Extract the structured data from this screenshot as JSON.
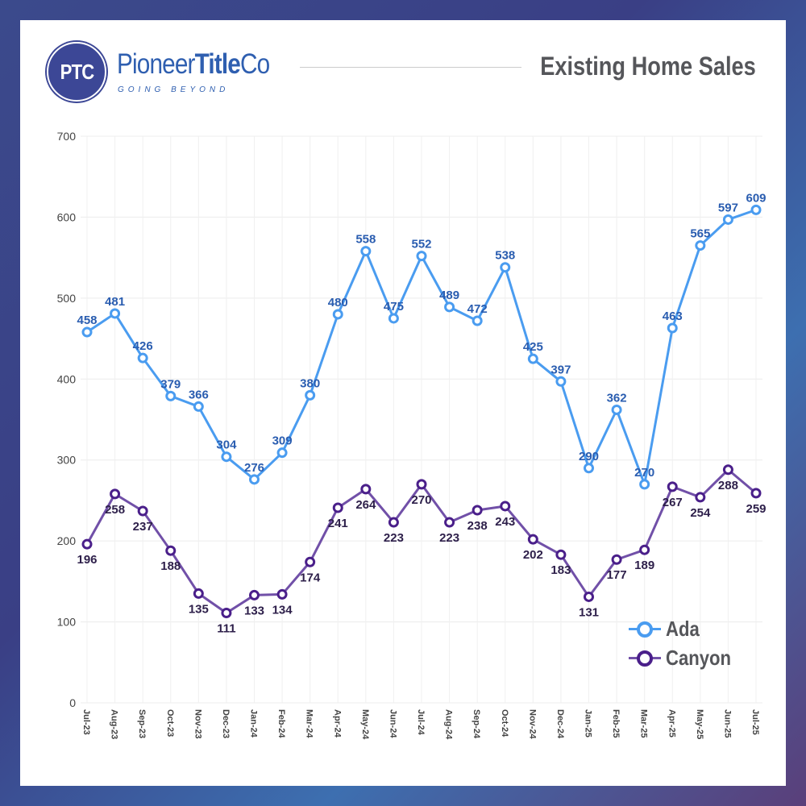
{
  "header": {
    "logo_initials": "PTC",
    "brand_regular": "Pioneer",
    "brand_bold": "Title",
    "brand_suffix": "Co",
    "tagline": "GOING BEYOND",
    "title": "Existing Home Sales"
  },
  "colors": {
    "ada_line": "#4a9cf0",
    "ada_label": "#2a5db0",
    "canyon_line": "#7150a8",
    "canyon_marker": "#4a1f8a",
    "canyon_label": "#2d1f4a"
  },
  "chart_data": {
    "type": "line",
    "title": "Existing Home Sales",
    "xlabel": "",
    "ylabel": "",
    "ylim": [
      0,
      700
    ],
    "yticks": [
      0,
      100,
      200,
      300,
      400,
      500,
      600,
      700
    ],
    "grid": true,
    "legend_position": "bottom-right",
    "categories": [
      "Jul-23",
      "Aug-23",
      "Sep-23",
      "Oct-23",
      "Nov-23",
      "Dec-23",
      "Jan-24",
      "Feb-24",
      "Mar-24",
      "Apr-24",
      "May-24",
      "Jun-24",
      "Jul-24",
      "Aug-24",
      "Sep-24",
      "Oct-24",
      "Nov-24",
      "Dec-24",
      "Jan-25",
      "Feb-25",
      "Mar-25",
      "Apr-25",
      "May-25",
      "Jun-25",
      "Jul-25"
    ],
    "series": [
      {
        "name": "Ada",
        "values": [
          458,
          481,
          426,
          379,
          366,
          304,
          276,
          309,
          380,
          480,
          558,
          475,
          552,
          489,
          472,
          538,
          425,
          397,
          290,
          362,
          270,
          463,
          565,
          597,
          609
        ]
      },
      {
        "name": "Canyon",
        "values": [
          196,
          258,
          237,
          188,
          135,
          111,
          133,
          134,
          174,
          241,
          264,
          223,
          270,
          223,
          238,
          243,
          202,
          183,
          131,
          177,
          189,
          267,
          254,
          288,
          259
        ]
      }
    ]
  }
}
